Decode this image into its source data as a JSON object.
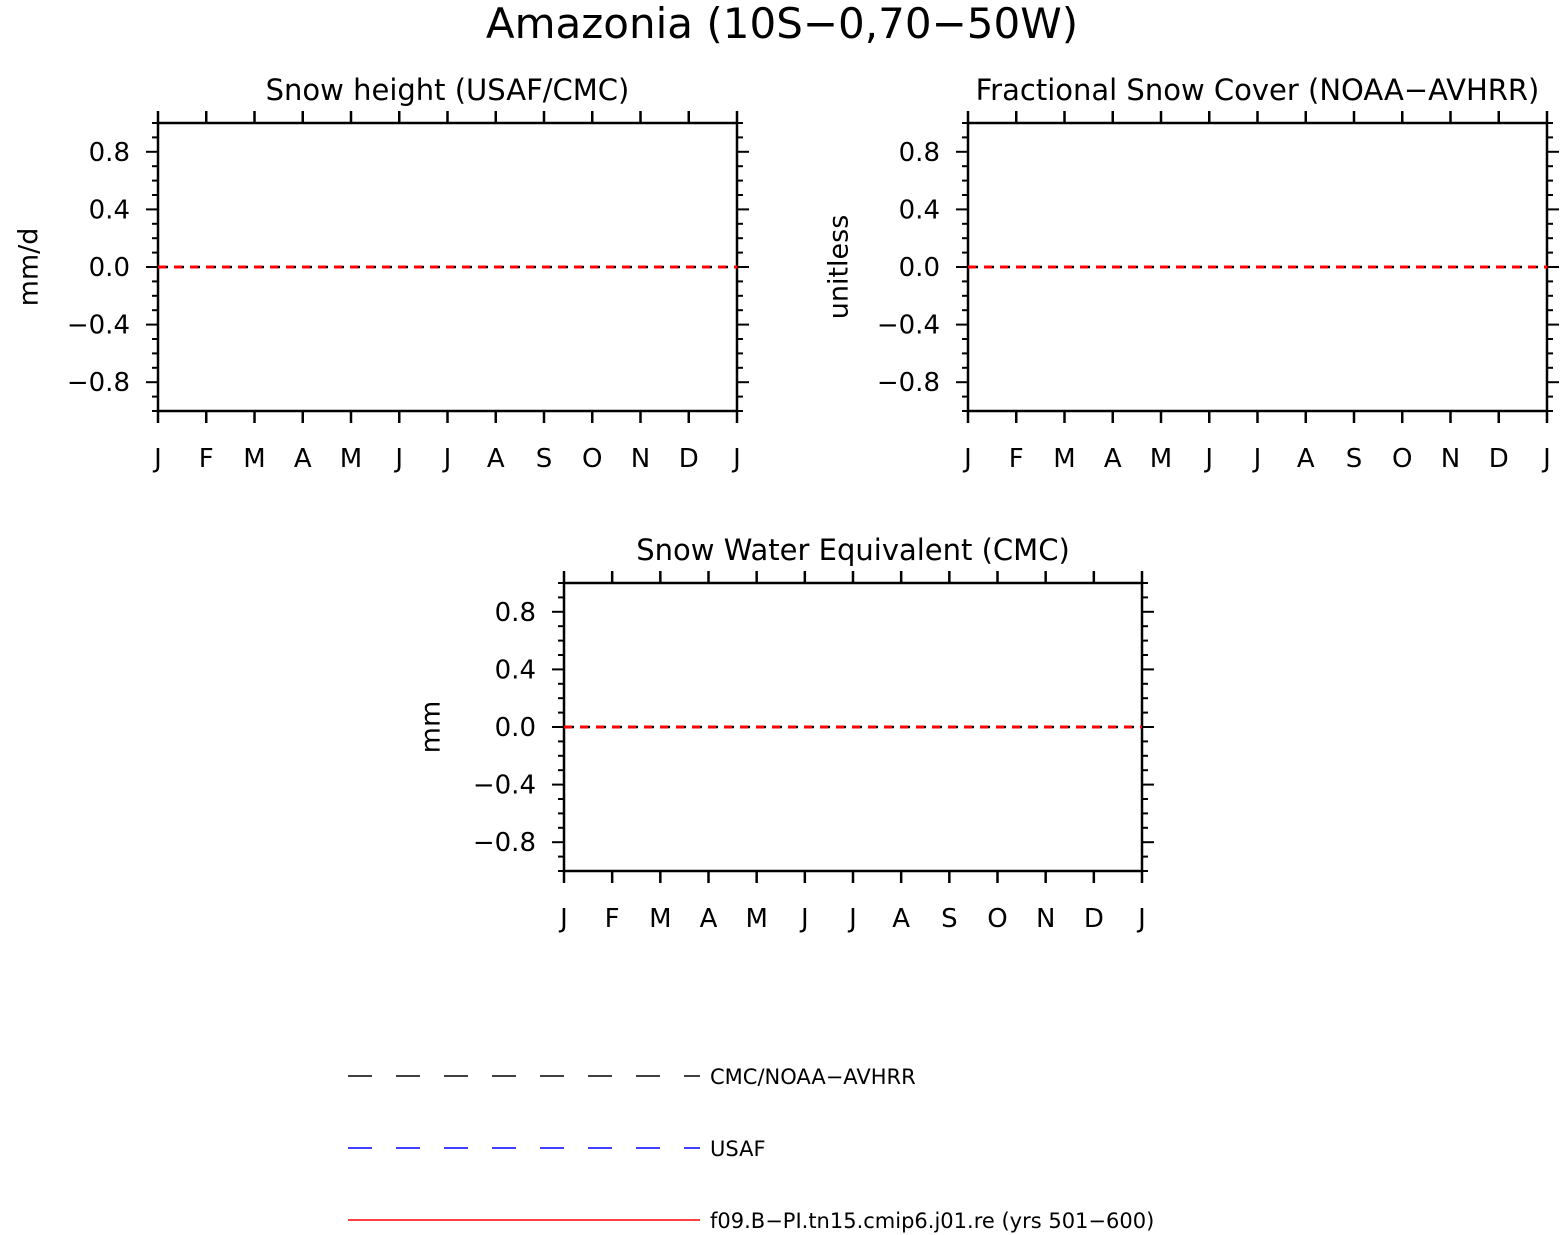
{
  "figure": {
    "title": "Amazonia (10S−0,70−50W)"
  },
  "chart_data": [
    {
      "type": "line",
      "title": "Snow height (USAF/CMC)",
      "ylabel": "mm/d",
      "xlabel": "",
      "x": [
        "J",
        "F",
        "M",
        "A",
        "M",
        "J",
        "J",
        "A",
        "S",
        "O",
        "N",
        "D",
        "J"
      ],
      "yticks": [
        "0.8",
        "0.4",
        "0.0",
        "−0.4",
        "−0.8"
      ],
      "ylim": [
        -1,
        1
      ],
      "series": [
        {
          "name": "CMC/NOAA−AVHRR",
          "color": "#000000",
          "dash": "dashed",
          "values": [
            0,
            0,
            0,
            0,
            0,
            0,
            0,
            0,
            0,
            0,
            0,
            0,
            0
          ]
        },
        {
          "name": "f09.B−PI.tn15.cmip6.j01.re (yrs 501−600)",
          "color": "#ff0000",
          "dash": "dashed",
          "values": [
            0,
            0,
            0,
            0,
            0,
            0,
            0,
            0,
            0,
            0,
            0,
            0,
            0
          ]
        }
      ]
    },
    {
      "type": "line",
      "title": "Fractional Snow Cover (NOAA−AVHRR)",
      "ylabel": "unitless",
      "xlabel": "",
      "x": [
        "J",
        "F",
        "M",
        "A",
        "M",
        "J",
        "J",
        "A",
        "S",
        "O",
        "N",
        "D",
        "J"
      ],
      "yticks": [
        "0.8",
        "0.4",
        "0.0",
        "−0.4",
        "−0.8"
      ],
      "ylim": [
        -1,
        1
      ],
      "series": [
        {
          "name": "CMC/NOAA−AVHRR",
          "color": "#000000",
          "dash": "dashed",
          "values": [
            0,
            0,
            0,
            0,
            0,
            0,
            0,
            0,
            0,
            0,
            0,
            0,
            0
          ]
        },
        {
          "name": "f09.B−PI.tn15.cmip6.j01.re (yrs 501−600)",
          "color": "#ff0000",
          "dash": "dashed",
          "values": [
            0,
            0,
            0,
            0,
            0,
            0,
            0,
            0,
            0,
            0,
            0,
            0,
            0
          ]
        }
      ]
    },
    {
      "type": "line",
      "title": "Snow Water Equivalent (CMC)",
      "ylabel": "mm",
      "xlabel": "",
      "x": [
        "J",
        "F",
        "M",
        "A",
        "M",
        "J",
        "J",
        "A",
        "S",
        "O",
        "N",
        "D",
        "J"
      ],
      "yticks": [
        "0.8",
        "0.4",
        "0.0",
        "−0.4",
        "−0.8"
      ],
      "ylim": [
        -1,
        1
      ],
      "series": [
        {
          "name": "CMC/NOAA−AVHRR",
          "color": "#000000",
          "dash": "dashed",
          "values": [
            0,
            0,
            0,
            0,
            0,
            0,
            0,
            0,
            0,
            0,
            0,
            0,
            0
          ]
        },
        {
          "name": "f09.B−PI.tn15.cmip6.j01.re (yrs 501−600)",
          "color": "#ff0000",
          "dash": "dashed",
          "values": [
            0,
            0,
            0,
            0,
            0,
            0,
            0,
            0,
            0,
            0,
            0,
            0,
            0
          ]
        }
      ]
    }
  ],
  "legend": {
    "placement": "bottom",
    "entries": [
      {
        "label": "CMC/NOAA−AVHRR",
        "color": "#000000",
        "style": "dashed"
      },
      {
        "label": "USAF",
        "color": "#0000ff",
        "style": "dashed"
      },
      {
        "label": "f09.B−PI.tn15.cmip6.j01.re (yrs 501−600)",
        "color": "#ff0000",
        "style": "solid"
      }
    ]
  }
}
